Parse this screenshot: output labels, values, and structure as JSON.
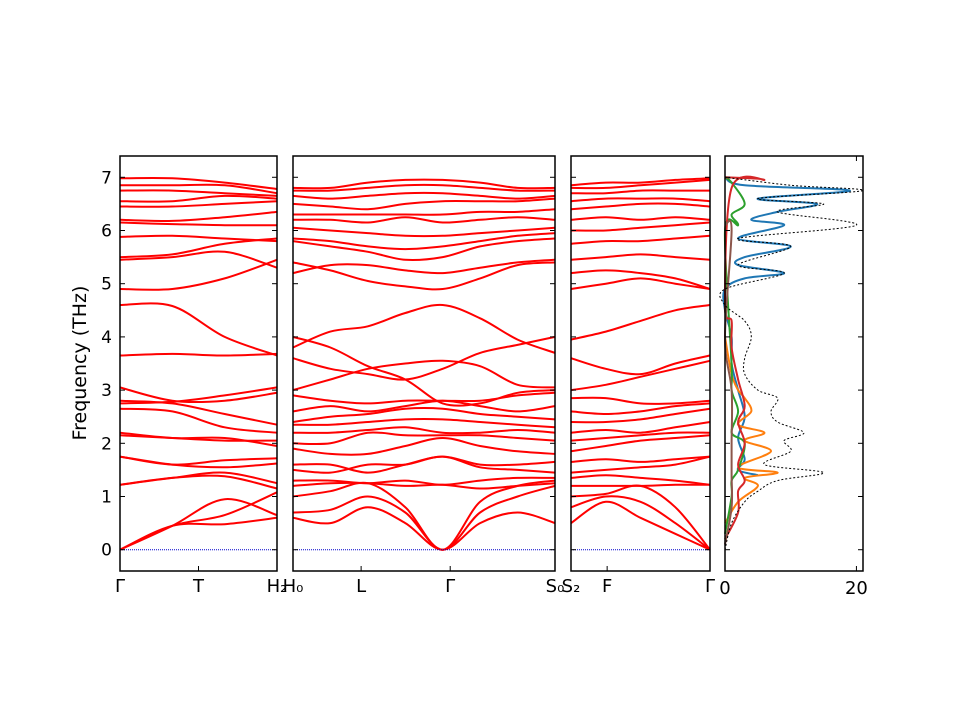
{
  "chart_data": {
    "type": "line",
    "ylabel": "Frequency (THz)",
    "ylim": [
      -0.4,
      7.4
    ],
    "yticks": [
      0,
      1,
      2,
      3,
      4,
      5,
      6,
      7
    ],
    "band_color": "#ff0000",
    "zero_line_color": "#0000cc",
    "panels": [
      {
        "id": "gamma-t-h2",
        "xticks": [
          "Γ",
          "T",
          "H₂"
        ],
        "xtick_pos": [
          0,
          0.5,
          1
        ],
        "bands": [
          [
            0,
            0.45,
            0.48,
            0.6
          ],
          [
            0,
            0.45,
            0.95,
            0.65
          ],
          [
            0,
            0.45,
            0.65,
            1.08
          ],
          [
            1.22,
            1.35,
            1.38,
            1.15
          ],
          [
            1.22,
            1.35,
            1.45,
            1.25
          ],
          [
            1.75,
            1.6,
            1.55,
            1.62
          ],
          [
            1.75,
            1.6,
            1.68,
            1.72
          ],
          [
            2.15,
            2.1,
            2.05,
            2.05
          ],
          [
            2.2,
            2.1,
            2.1,
            1.95
          ],
          [
            2.65,
            2.6,
            2.3,
            2.2
          ],
          [
            2.8,
            2.75,
            2.55,
            2.35
          ],
          [
            3.05,
            2.8,
            2.8,
            2.95
          ],
          [
            2.75,
            2.78,
            2.9,
            3.05
          ],
          [
            3.65,
            3.68,
            3.65,
            3.68
          ],
          [
            4.6,
            4.58,
            4.0,
            3.65
          ],
          [
            4.9,
            4.9,
            5.1,
            5.45
          ],
          [
            5.45,
            5.5,
            5.6,
            5.3
          ],
          [
            5.5,
            5.55,
            5.75,
            5.85
          ],
          [
            5.88,
            5.9,
            5.85,
            5.8
          ],
          [
            6.15,
            6.12,
            6.1,
            6.1
          ],
          [
            6.2,
            6.18,
            6.25,
            6.35
          ],
          [
            6.45,
            6.45,
            6.5,
            6.55
          ],
          [
            6.55,
            6.55,
            6.65,
            6.6
          ],
          [
            6.75,
            6.75,
            6.7,
            6.65
          ],
          [
            6.85,
            6.85,
            6.85,
            6.7
          ],
          [
            6.98,
            6.98,
            6.9,
            6.78
          ]
        ]
      },
      {
        "id": "h0-l-gamma-s0",
        "xticks": [
          "H₀",
          "L",
          "Γ",
          "S₀"
        ],
        "xtick_pos": [
          0,
          0.26,
          0.6,
          1
        ],
        "bands": [
          [
            0.6,
            0.5,
            0.8,
            0.5,
            0,
            0.5,
            0.7,
            0.5
          ],
          [
            0.7,
            0.75,
            1.0,
            0.7,
            0,
            0.7,
            1.0,
            1.2
          ],
          [
            1.0,
            1.1,
            1.25,
            0.8,
            0,
            0.9,
            1.2,
            1.3
          ],
          [
            1.2,
            1.25,
            1.25,
            1.2,
            1.22,
            1.15,
            1.2,
            1.25
          ],
          [
            1.3,
            1.3,
            1.25,
            1.3,
            1.22,
            1.3,
            1.35,
            1.35
          ],
          [
            1.5,
            1.45,
            1.6,
            1.6,
            1.75,
            1.55,
            1.5,
            1.45
          ],
          [
            1.6,
            1.6,
            1.45,
            1.6,
            1.75,
            1.6,
            1.6,
            1.65
          ],
          [
            1.9,
            1.8,
            1.8,
            1.95,
            2.1,
            1.95,
            1.85,
            1.8
          ],
          [
            2.0,
            2.0,
            2.2,
            2.15,
            2.15,
            2.15,
            2.1,
            2.05
          ],
          [
            2.2,
            2.2,
            2.25,
            2.3,
            2.2,
            2.2,
            2.25,
            2.2
          ],
          [
            2.35,
            2.35,
            2.4,
            2.45,
            2.45,
            2.4,
            2.35,
            2.3
          ],
          [
            2.4,
            2.5,
            2.55,
            2.65,
            2.65,
            2.55,
            2.5,
            2.45
          ],
          [
            2.6,
            2.7,
            2.6,
            2.7,
            2.8,
            2.7,
            2.6,
            2.7
          ],
          [
            2.9,
            2.8,
            2.75,
            2.8,
            2.8,
            2.8,
            2.9,
            2.95
          ],
          [
            3.0,
            3.2,
            3.4,
            3.5,
            3.55,
            3.45,
            3.1,
            3.05
          ],
          [
            3.6,
            3.4,
            3.3,
            3.2,
            3.4,
            3.7,
            3.85,
            4.0
          ],
          [
            4.0,
            3.8,
            3.45,
            3.2,
            2.75,
            2.75,
            2.95,
            3.0
          ],
          [
            3.8,
            4.1,
            4.2,
            4.45,
            4.6,
            4.35,
            3.95,
            3.7
          ],
          [
            5.4,
            5.25,
            5.05,
            4.95,
            4.9,
            5.1,
            5.35,
            5.4
          ],
          [
            5.2,
            5.35,
            5.35,
            5.25,
            5.2,
            5.3,
            5.4,
            5.45
          ],
          [
            5.8,
            5.7,
            5.6,
            5.45,
            5.5,
            5.7,
            5.8,
            5.85
          ],
          [
            5.85,
            5.8,
            5.7,
            5.65,
            5.7,
            5.8,
            5.9,
            5.95
          ],
          [
            6.05,
            6.0,
            5.95,
            5.9,
            5.9,
            5.95,
            6.0,
            6.05
          ],
          [
            6.2,
            6.2,
            6.15,
            6.25,
            6.15,
            6.2,
            6.25,
            6.2
          ],
          [
            6.3,
            6.3,
            6.3,
            6.3,
            6.3,
            6.35,
            6.35,
            6.4
          ],
          [
            6.5,
            6.45,
            6.4,
            6.5,
            6.55,
            6.55,
            6.55,
            6.6
          ],
          [
            6.65,
            6.6,
            6.65,
            6.7,
            6.7,
            6.65,
            6.6,
            6.65
          ],
          [
            6.75,
            6.75,
            6.8,
            6.85,
            6.85,
            6.8,
            6.75,
            6.75
          ],
          [
            6.8,
            6.8,
            6.9,
            6.95,
            6.95,
            6.9,
            6.8,
            6.8
          ]
        ]
      },
      {
        "id": "s2-f-gamma",
        "xticks": [
          "S₂",
          "F",
          "Γ"
        ],
        "xtick_pos": [
          0,
          0.26,
          1
        ],
        "bands": [
          [
            0.5,
            0.9,
            0.6,
            0.3,
            0
          ],
          [
            0.8,
            1.0,
            0.9,
            0.5,
            0
          ],
          [
            1.0,
            1.05,
            1.2,
            0.8,
            0
          ],
          [
            1.2,
            1.2,
            1.2,
            1.22,
            1.22
          ],
          [
            1.35,
            1.4,
            1.35,
            1.3,
            1.22
          ],
          [
            1.45,
            1.5,
            1.55,
            1.6,
            1.75
          ],
          [
            1.65,
            1.7,
            1.65,
            1.7,
            1.75
          ],
          [
            1.85,
            1.95,
            2.05,
            2.1,
            2.15
          ],
          [
            2.05,
            2.1,
            2.15,
            2.2,
            2.2
          ],
          [
            2.2,
            2.25,
            2.2,
            2.3,
            2.4
          ],
          [
            2.4,
            2.4,
            2.45,
            2.55,
            2.65
          ],
          [
            2.6,
            2.55,
            2.6,
            2.7,
            2.75
          ],
          [
            2.85,
            2.85,
            2.75,
            2.75,
            2.8
          ],
          [
            3.0,
            3.1,
            3.25,
            3.4,
            3.55
          ],
          [
            3.6,
            3.4,
            3.3,
            3.5,
            3.65
          ],
          [
            3.95,
            4.1,
            4.3,
            4.5,
            4.6
          ],
          [
            4.9,
            5.0,
            5.1,
            5.0,
            4.9
          ],
          [
            5.2,
            5.25,
            5.2,
            5.1,
            4.9
          ],
          [
            5.45,
            5.5,
            5.55,
            5.5,
            5.45
          ],
          [
            5.75,
            5.8,
            5.8,
            5.85,
            5.9
          ],
          [
            6.0,
            6.0,
            6.05,
            6.1,
            6.15
          ],
          [
            6.2,
            6.25,
            6.2,
            6.25,
            6.2
          ],
          [
            6.4,
            6.45,
            6.5,
            6.5,
            6.45
          ],
          [
            6.55,
            6.6,
            6.6,
            6.6,
            6.55
          ],
          [
            6.7,
            6.7,
            6.75,
            6.75,
            6.75
          ],
          [
            6.8,
            6.8,
            6.85,
            6.9,
            6.95
          ],
          [
            6.85,
            6.9,
            6.9,
            6.95,
            6.98
          ]
        ]
      }
    ],
    "dos": {
      "id": "dos-panel",
      "xlim": [
        0,
        21
      ],
      "xticks": [
        0,
        20
      ],
      "total_color": "#000000",
      "series": [
        {
          "color": "#1f77b4",
          "points": [
            [
              4.9,
              0
            ],
            [
              5.1,
              3
            ],
            [
              5.2,
              9
            ],
            [
              5.35,
              2
            ],
            [
              5.5,
              3
            ],
            [
              5.7,
              10
            ],
            [
              5.85,
              2
            ],
            [
              6.1,
              9
            ],
            [
              6.2,
              4
            ],
            [
              6.35,
              8
            ],
            [
              6.5,
              14
            ],
            [
              6.6,
              5
            ],
            [
              6.75,
              19
            ],
            [
              6.85,
              3
            ],
            [
              7.0,
              0
            ],
            [
              1.4,
              5
            ],
            [
              1.5,
              2
            ],
            [
              1.7,
              3
            ],
            [
              2.1,
              2
            ],
            [
              2.5,
              3
            ],
            [
              3.0,
              2
            ],
            [
              3.5,
              1
            ],
            [
              4.0,
              1
            ],
            [
              4.5,
              0
            ]
          ]
        },
        {
          "color": "#ff7f0e",
          "points": [
            [
              0.5,
              0
            ],
            [
              0.9,
              2
            ],
            [
              1.2,
              5
            ],
            [
              1.35,
              3
            ],
            [
              1.45,
              8
            ],
            [
              1.55,
              2
            ],
            [
              1.85,
              7
            ],
            [
              2.05,
              3
            ],
            [
              2.2,
              6
            ],
            [
              2.35,
              2
            ],
            [
              2.6,
              4
            ],
            [
              2.85,
              3
            ],
            [
              3.0,
              2
            ],
            [
              3.3,
              1
            ],
            [
              4.0,
              0
            ]
          ]
        },
        {
          "color": "#2ca02c",
          "points": [
            [
              0.3,
              0
            ],
            [
              1.0,
              1
            ],
            [
              1.3,
              1
            ],
            [
              1.5,
              2
            ],
            [
              2.0,
              3
            ],
            [
              2.2,
              1
            ],
            [
              2.6,
              2
            ],
            [
              3.0,
              1
            ],
            [
              3.5,
              1
            ],
            [
              6.0,
              0
            ],
            [
              6.1,
              2
            ],
            [
              6.3,
              1
            ],
            [
              6.5,
              3
            ],
            [
              6.9,
              1
            ],
            [
              7.0,
              0
            ]
          ]
        },
        {
          "color": "#d62728",
          "points": [
            [
              0.2,
              0
            ],
            [
              0.7,
              2
            ],
            [
              1.1,
              2
            ],
            [
              1.3,
              3
            ],
            [
              1.6,
              2
            ],
            [
              2.0,
              3
            ],
            [
              2.4,
              2
            ],
            [
              2.7,
              3
            ],
            [
              3.2,
              2
            ],
            [
              3.8,
              1
            ],
            [
              4.3,
              1
            ],
            [
              4.6,
              0
            ],
            [
              6.8,
              1
            ],
            [
              6.95,
              6
            ],
            [
              7.0,
              0
            ]
          ]
        },
        {
          "color": "#8c564b",
          "points": [
            [
              0.1,
              0
            ],
            [
              0.8,
              1
            ],
            [
              1.4,
              1
            ],
            [
              2.0,
              1
            ],
            [
              3.0,
              1
            ],
            [
              4.0,
              0
            ],
            [
              6.0,
              1
            ],
            [
              6.1,
              0
            ]
          ]
        }
      ],
      "total": [
        [
          0.0,
          0
        ],
        [
          0.5,
          1
        ],
        [
          0.9,
          3
        ],
        [
          1.1,
          5
        ],
        [
          1.3,
          8
        ],
        [
          1.45,
          15
        ],
        [
          1.6,
          6
        ],
        [
          1.85,
          10
        ],
        [
          2.05,
          9
        ],
        [
          2.2,
          12
        ],
        [
          2.4,
          8
        ],
        [
          2.6,
          7
        ],
        [
          2.85,
          8
        ],
        [
          3.0,
          5
        ],
        [
          3.3,
          3
        ],
        [
          3.6,
          3
        ],
        [
          4.0,
          4
        ],
        [
          4.3,
          3
        ],
        [
          4.6,
          0
        ],
        [
          4.9,
          0
        ],
        [
          5.2,
          9
        ],
        [
          5.35,
          2
        ],
        [
          5.7,
          10
        ],
        [
          5.85,
          2
        ],
        [
          6.1,
          20
        ],
        [
          6.35,
          8
        ],
        [
          6.5,
          15
        ],
        [
          6.6,
          5
        ],
        [
          6.75,
          21
        ],
        [
          6.85,
          10
        ],
        [
          7.0,
          0
        ]
      ]
    }
  }
}
